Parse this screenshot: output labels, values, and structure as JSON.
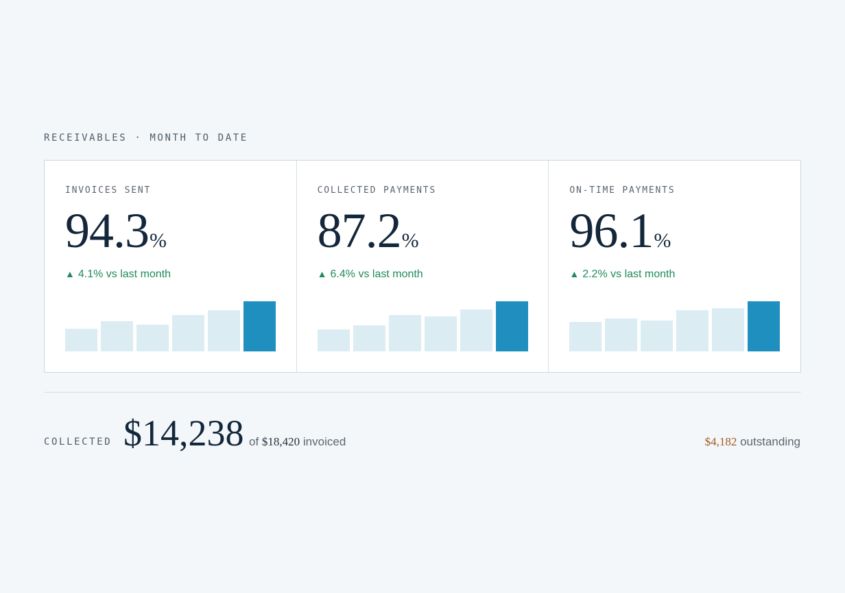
{
  "header": {
    "title": "RECEIVABLES · MONTH TO DATE"
  },
  "cards": [
    {
      "label": "INVOICES SENT",
      "value": "94.3",
      "unit": "%",
      "delta_arrow": "▲",
      "delta_text": "4.1% vs last month",
      "bars": [
        0.45,
        0.6,
        0.53,
        0.73,
        0.82,
        1.0
      ]
    },
    {
      "label": "COLLECTED PAYMENTS",
      "value": "87.2",
      "unit": "%",
      "delta_arrow": "▲",
      "delta_text": "6.4% vs last month",
      "bars": [
        0.44,
        0.52,
        0.72,
        0.7,
        0.84,
        1.0
      ]
    },
    {
      "label": "ON-TIME PAYMENTS",
      "value": "96.1",
      "unit": "%",
      "delta_arrow": "▲",
      "delta_text": "2.2% vs last month",
      "bars": [
        0.59,
        0.66,
        0.62,
        0.82,
        0.86,
        1.0
      ]
    }
  ],
  "footer": {
    "label": "COLLECTED",
    "amount": "$14,238",
    "invoiced_prefix": "of",
    "invoiced_amount": "$18,420",
    "invoiced_suffix": "invoiced",
    "outstanding_amount": "$4,182",
    "outstanding_label": "outstanding"
  },
  "colors": {
    "accent": "#1e8fbf",
    "bar_muted": "#dcecf3",
    "positive": "#1f8a5b",
    "warning": "#a15a1f"
  }
}
